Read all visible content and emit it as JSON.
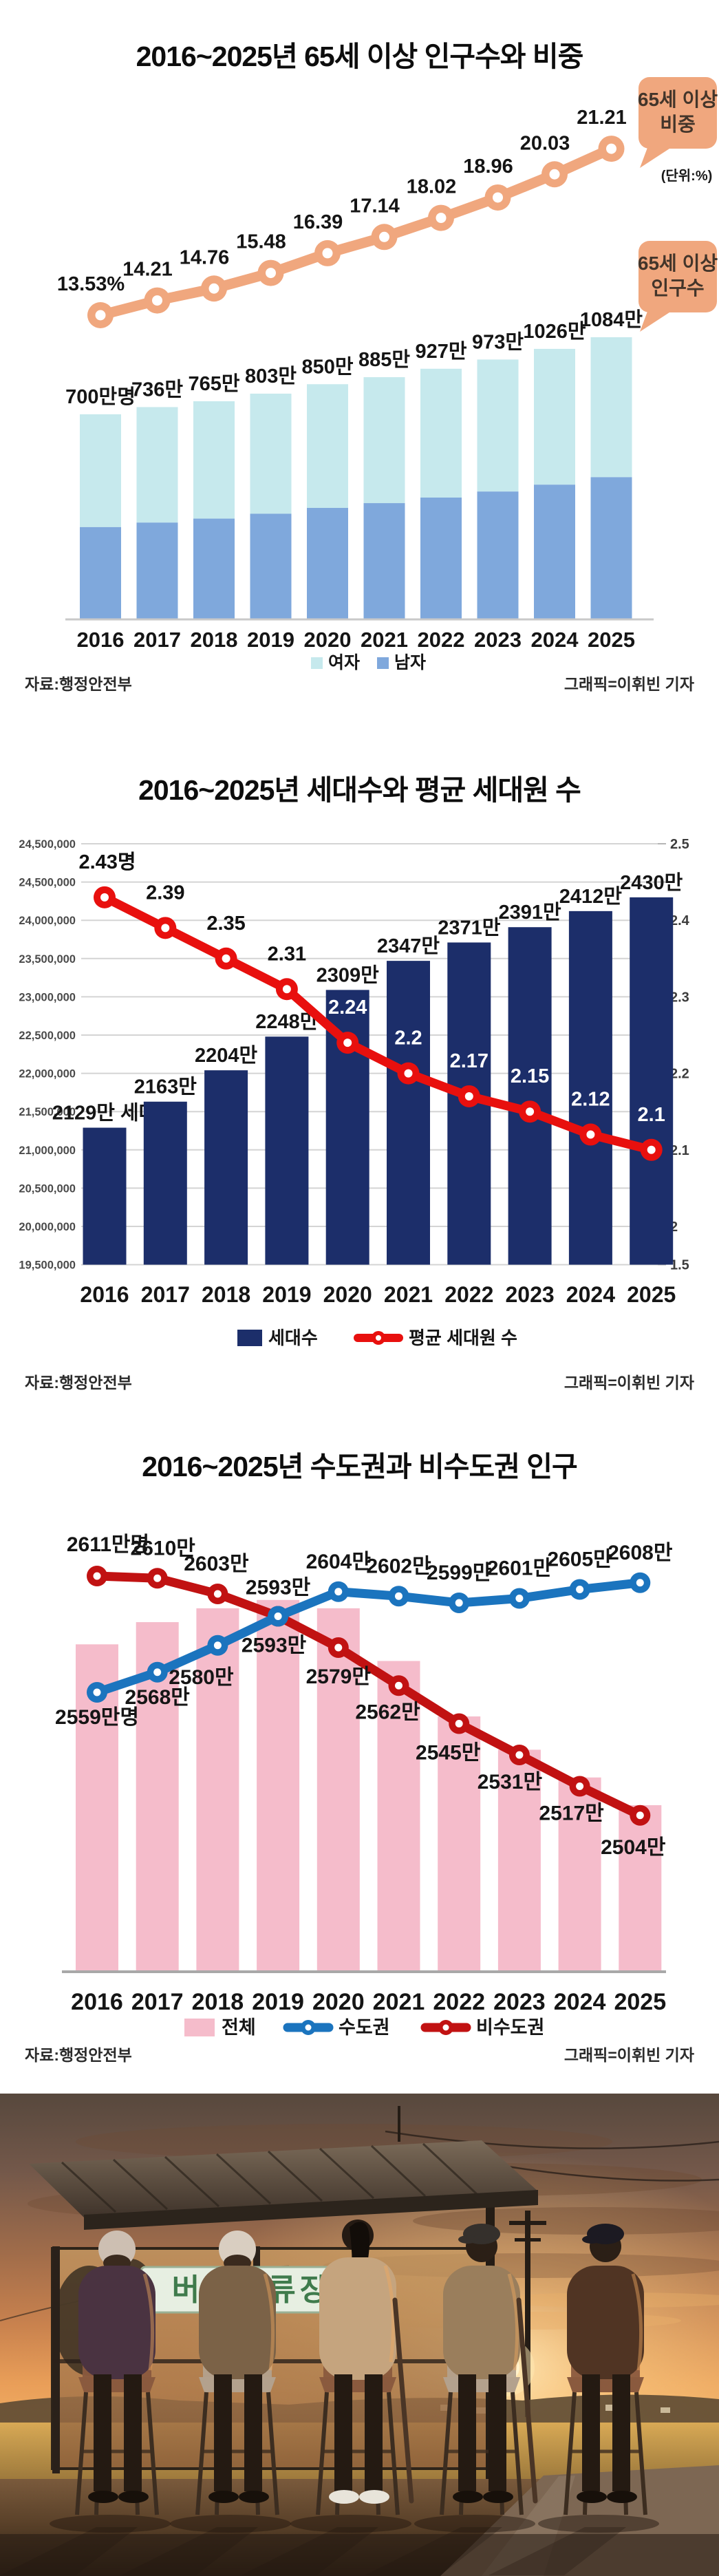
{
  "years": [
    "2016",
    "2017",
    "2018",
    "2019",
    "2020",
    "2021",
    "2022",
    "2023",
    "2024",
    "2025"
  ],
  "chart_data": [
    {
      "type": "bar",
      "title": "2016~2025년 65세 이상 인구수와 비중",
      "categories": [
        "2016",
        "2017",
        "2018",
        "2019",
        "2020",
        "2021",
        "2022",
        "2023",
        "2024",
        "2025"
      ],
      "series": [
        {
          "name": "65세 이상 비중",
          "type": "line",
          "unit": "%",
          "values": [
            13.53,
            14.21,
            14.76,
            15.48,
            16.39,
            17.14,
            18.02,
            18.96,
            20.03,
            21.21
          ],
          "labels": [
            "13.53%",
            "14.21",
            "14.76",
            "15.48",
            "16.39",
            "17.14",
            "18.02",
            "18.96",
            "20.03",
            "21.21"
          ],
          "color": "#F0A77E"
        },
        {
          "name": "65세 이상 인구수",
          "type": "stacked-bar",
          "unit": "만명",
          "values": [
            700,
            736,
            765,
            803,
            850,
            885,
            927,
            973,
            1026,
            1084
          ],
          "labels": [
            "700만명",
            "736만",
            "765만",
            "803만",
            "850만",
            "885만",
            "927만",
            "973만",
            "1026만",
            "1084만"
          ],
          "stacks": [
            {
              "name": "여자",
              "color": "#C6E9ED"
            },
            {
              "name": "남자",
              "color": "#7FA8DC"
            }
          ]
        }
      ],
      "annotations": {
        "bubble_ratio_line1": "65세 이상",
        "bubble_ratio_line2": "비중",
        "ratio_unit_note": "(단위:%)",
        "bubble_pop_line1": "65세 이상",
        "bubble_pop_line2": "인구수",
        "bubble_color": "#F0A77E"
      },
      "legend": [
        "여자",
        "남자"
      ],
      "source": "자료:행정안전부",
      "credit": "그래픽=이휘빈 기자"
    },
    {
      "type": "bar",
      "title": "2016~2025년 세대수와 평균 세대원 수",
      "categories": [
        "2016",
        "2017",
        "2018",
        "2019",
        "2020",
        "2021",
        "2022",
        "2023",
        "2024",
        "2025"
      ],
      "left_axis_ticks": [
        "24,500,000",
        "24,500,000",
        "24,000,000",
        "23,500,000",
        "23,000,000",
        "22,500,000",
        "22,000,000",
        "21,500,000",
        "21,000,000",
        "20,500,000",
        "20,000,000",
        "19,500,000"
      ],
      "right_axis_ticks": [
        "2.5",
        "2.4",
        "2.3",
        "2.2",
        "2.1",
        "2",
        "1.5"
      ],
      "series": [
        {
          "name": "세대수",
          "type": "bar",
          "unit": "만 세대",
          "values": [
            2129,
            2163,
            2204,
            2248,
            2309,
            2347,
            2371,
            2391,
            2412,
            2430
          ],
          "labels": [
            "2129만 세대",
            "2163만",
            "2204만",
            "2248만",
            "2309만",
            "2347만",
            "2371만",
            "2391만",
            "2412만",
            "2430만"
          ],
          "color": "#1C2E6A"
        },
        {
          "name": "평균 세대원 수",
          "type": "line",
          "unit": "명",
          "values": [
            2.43,
            2.39,
            2.35,
            2.31,
            2.24,
            2.2,
            2.17,
            2.15,
            2.12,
            2.1
          ],
          "labels": [
            "2.43명",
            "2.39",
            "2.35",
            "2.31",
            "2.24",
            "2.2",
            "2.17",
            "2.15",
            "2.12",
            "2.1"
          ],
          "color": "#E8100E"
        }
      ],
      "legend": [
        "세대수",
        "평균 세대원 수"
      ],
      "source": "자료:행정안전부",
      "credit": "그래픽=이휘빈 기자"
    },
    {
      "type": "line",
      "title": "2016~2025년 수도권과 비수도권 인구",
      "categories": [
        "2016",
        "2017",
        "2018",
        "2019",
        "2020",
        "2021",
        "2022",
        "2023",
        "2024",
        "2025"
      ],
      "series": [
        {
          "name": "전체",
          "type": "bar",
          "unit": "만명",
          "values": [
            5170,
            5178,
            5183,
            5186,
            5183,
            5164,
            5144,
            5132,
            5122,
            5112
          ],
          "color": "#F5BCCB"
        },
        {
          "name": "수도권",
          "type": "line",
          "unit": "만명",
          "values": [
            2559,
            2568,
            2580,
            2593,
            2604,
            2602,
            2599,
            2601,
            2605,
            2608
          ],
          "labels": [
            "2559만명",
            "2568만",
            "2580만",
            "2593만",
            "2604만",
            "2602만",
            "2599만",
            "2601만",
            "2605만",
            "2608만"
          ],
          "color": "#1B74BE"
        },
        {
          "name": "비수도권",
          "type": "line",
          "unit": "만명",
          "values": [
            2611,
            2610,
            2603,
            2593,
            2579,
            2562,
            2545,
            2531,
            2517,
            2504
          ],
          "labels": [
            "2611만명",
            "2610만",
            "2603만",
            "2593만",
            "2579만",
            "2562만",
            "2545만",
            "2531만",
            "2517만",
            "2504만"
          ],
          "color": "#C11212"
        }
      ],
      "legend": [
        "전체",
        "수도권",
        "비수도권"
      ],
      "source": "자료:행정안전부",
      "credit": "그래픽=이휘빈 기자"
    }
  ],
  "photo": {
    "sign_text": "버스정류장"
  }
}
